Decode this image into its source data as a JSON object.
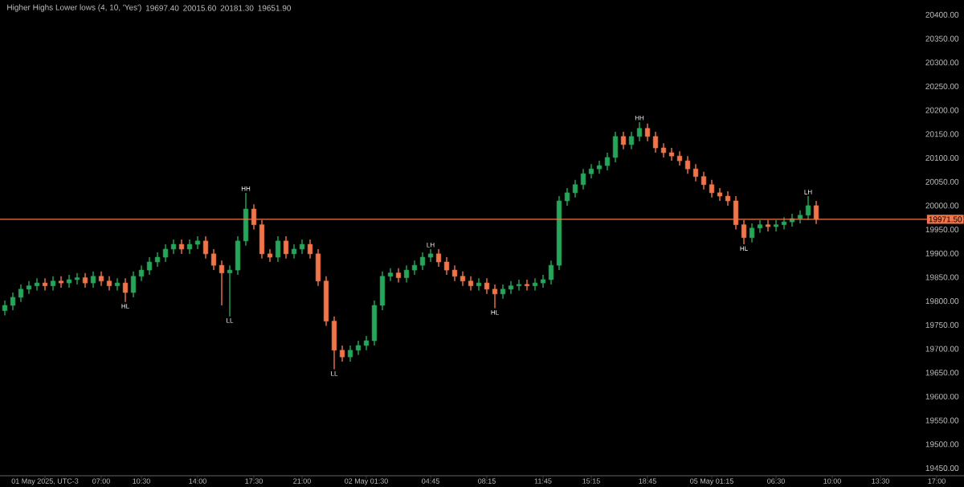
{
  "chart_data": {
    "type": "candlestick",
    "title": "Higher Highs Lower lows (4, 10, 'Yes')",
    "annotations": [
      "19697.40",
      "20015.60",
      "20181.30",
      "19651.90"
    ],
    "categories": [
      null,
      null,
      null,
      null,
      null,
      "01 May 2025, UTC-3",
      null,
      null,
      null,
      null,
      null,
      null,
      "07:00",
      null,
      null,
      null,
      null,
      "10:30",
      null,
      null,
      null,
      null,
      null,
      null,
      "14:00",
      null,
      null,
      null,
      null,
      null,
      null,
      "17:30",
      null,
      null,
      null,
      null,
      null,
      "21:00",
      null,
      null,
      null,
      null,
      null,
      null,
      null,
      "02 May 01:30",
      null,
      null,
      null,
      null,
      null,
      null,
      null,
      "04:45",
      null,
      null,
      null,
      null,
      null,
      null,
      "08:15",
      null,
      null,
      null,
      null,
      null,
      null,
      "11:45",
      null,
      null,
      null,
      null,
      null,
      "15:15",
      null,
      null,
      null,
      null,
      null,
      null,
      "18:45",
      null,
      null,
      null,
      null,
      null,
      null,
      null,
      "05 May 01:15",
      null,
      null,
      null,
      null,
      null,
      null,
      null,
      "06:30",
      null,
      null,
      null,
      null,
      null,
      null,
      "10:00",
      null,
      null,
      null,
      null,
      null,
      "13:30",
      null,
      null,
      null,
      null,
      null,
      null,
      "17:00",
      null,
      null,
      null
    ],
    "value_labels": [
      null,
      null,
      null,
      null,
      null,
      null,
      null,
      null,
      null,
      null,
      null,
      null,
      null,
      null,
      null,
      "HL",
      null,
      null,
      null,
      null,
      null,
      null,
      null,
      null,
      null,
      null,
      null,
      null,
      "LL",
      null,
      "HH",
      null,
      null,
      null,
      null,
      null,
      null,
      null,
      null,
      null,
      null,
      "LL",
      null,
      null,
      null,
      null,
      null,
      null,
      null,
      null,
      null,
      null,
      null,
      "LH",
      null,
      null,
      null,
      null,
      null,
      null,
      null,
      "HL",
      null,
      null,
      null,
      null,
      null,
      null,
      null,
      null,
      null,
      null,
      null,
      null,
      null,
      null,
      null,
      null,
      null,
      "HH",
      null,
      null,
      null,
      null,
      null,
      null,
      null,
      null,
      null,
      null,
      null,
      null,
      "HL",
      null,
      null,
      null,
      null,
      null,
      null,
      null,
      "LH",
      null,
      null,
      null,
      null,
      null,
      null,
      null,
      null,
      null,
      null,
      null,
      null,
      null,
      null,
      null,
      null,
      null,
      null,
      null
    ],
    "ohlc": [
      [
        19780,
        19801,
        19770,
        19791
      ],
      [
        19791,
        19818,
        19781,
        19808
      ],
      [
        19808,
        19835,
        19798,
        19825
      ],
      [
        19825,
        19842,
        19815,
        19832
      ],
      [
        19832,
        19848,
        19822,
        19838
      ],
      [
        19838,
        19848,
        19822,
        19832
      ],
      [
        19832,
        19852,
        19822,
        19842
      ],
      [
        19842,
        19852,
        19828,
        19838
      ],
      [
        19838,
        19855,
        19828,
        19845
      ],
      [
        19845,
        19859,
        19835,
        19849
      ],
      [
        19849,
        19859,
        19828,
        19838
      ],
      [
        19838,
        19862,
        19828,
        19852
      ],
      [
        19852,
        19862,
        19832,
        19842
      ],
      [
        19842,
        19852,
        19822,
        19832
      ],
      [
        19832,
        19848,
        19822,
        19838
      ],
      [
        19838,
        19848,
        19798,
        19818
      ],
      [
        19818,
        19862,
        19808,
        19852
      ],
      [
        19852,
        19875,
        19842,
        19865
      ],
      [
        19865,
        19892,
        19855,
        19882
      ],
      [
        19882,
        19902,
        19872,
        19892
      ],
      [
        19892,
        19919,
        19882,
        19909
      ],
      [
        19909,
        19929,
        19899,
        19919
      ],
      [
        19919,
        19929,
        19899,
        19909
      ],
      [
        19909,
        19929,
        19899,
        19919
      ],
      [
        19919,
        19936,
        19909,
        19926
      ],
      [
        19926,
        19936,
        19889,
        19899
      ],
      [
        19899,
        19909,
        19865,
        19875
      ],
      [
        19875,
        19885,
        19791,
        19859
      ],
      [
        19859,
        19875,
        19768,
        19865
      ],
      [
        19865,
        19936,
        19855,
        19926
      ],
      [
        19926,
        20027,
        19916,
        19993
      ],
      [
        19993,
        20003,
        19950,
        19960
      ],
      [
        19960,
        19970,
        19889,
        19899
      ],
      [
        19899,
        19909,
        19882,
        19892
      ],
      [
        19892,
        19936,
        19882,
        19926
      ],
      [
        19926,
        19936,
        19889,
        19899
      ],
      [
        19899,
        19919,
        19889,
        19909
      ],
      [
        19909,
        19929,
        19899,
        19919
      ],
      [
        19919,
        19929,
        19889,
        19899
      ],
      [
        19899,
        19909,
        19832,
        19842
      ],
      [
        19842,
        19852,
        19748,
        19758
      ],
      [
        19758,
        19768,
        19657,
        19697
      ],
      [
        19697,
        19707,
        19673,
        19683
      ],
      [
        19683,
        19707,
        19673,
        19697
      ],
      [
        19697,
        19717,
        19687,
        19707
      ],
      [
        19707,
        19727,
        19697,
        19717
      ],
      [
        19717,
        19801,
        19707,
        19791
      ],
      [
        19791,
        19862,
        19781,
        19852
      ],
      [
        19852,
        19869,
        19842,
        19859
      ],
      [
        19859,
        19869,
        19839,
        19849
      ],
      [
        19849,
        19875,
        19839,
        19865
      ],
      [
        19865,
        19885,
        19855,
        19875
      ],
      [
        19875,
        19902,
        19865,
        19892
      ],
      [
        19892,
        19909,
        19882,
        19899
      ],
      [
        19899,
        19909,
        19872,
        19882
      ],
      [
        19882,
        19892,
        19855,
        19865
      ],
      [
        19865,
        19875,
        19842,
        19852
      ],
      [
        19852,
        19862,
        19832,
        19842
      ],
      [
        19842,
        19852,
        19822,
        19832
      ],
      [
        19832,
        19848,
        19822,
        19838
      ],
      [
        19838,
        19848,
        19815,
        19825
      ],
      [
        19825,
        19835,
        19785,
        19815
      ],
      [
        19815,
        19835,
        19805,
        19825
      ],
      [
        19825,
        19842,
        19815,
        19832
      ],
      [
        19832,
        19845,
        19822,
        19835
      ],
      [
        19835,
        19845,
        19822,
        19832
      ],
      [
        19832,
        19848,
        19822,
        19838
      ],
      [
        19838,
        19855,
        19828,
        19845
      ],
      [
        19845,
        19885,
        19835,
        19875
      ],
      [
        19875,
        20020,
        19865,
        20010
      ],
      [
        20010,
        20037,
        20000,
        20027
      ],
      [
        20027,
        20054,
        20017,
        20044
      ],
      [
        20044,
        20077,
        20034,
        20067
      ],
      [
        20067,
        20087,
        20057,
        20077
      ],
      [
        20077,
        20094,
        20067,
        20084
      ],
      [
        20084,
        20111,
        20074,
        20101
      ],
      [
        20101,
        20155,
        20091,
        20145
      ],
      [
        20145,
        20155,
        20118,
        20128
      ],
      [
        20128,
        20155,
        20118,
        20145
      ],
      [
        20145,
        20175,
        20135,
        20162
      ],
      [
        20162,
        20172,
        20135,
        20145
      ],
      [
        20145,
        20155,
        20111,
        20121
      ],
      [
        20121,
        20131,
        20101,
        20111
      ],
      [
        20111,
        20121,
        20094,
        20104
      ],
      [
        20104,
        20114,
        20084,
        20094
      ],
      [
        20094,
        20104,
        20067,
        20077
      ],
      [
        20077,
        20087,
        20051,
        20061
      ],
      [
        20061,
        20071,
        20034,
        20044
      ],
      [
        20044,
        20054,
        20017,
        20027
      ],
      [
        20027,
        20037,
        20010,
        20020
      ],
      [
        20020,
        20030,
        20000,
        20010
      ],
      [
        20010,
        20020,
        19950,
        19960
      ],
      [
        19960,
        19970,
        19919,
        19933
      ],
      [
        19933,
        19963,
        19923,
        19953
      ],
      [
        19953,
        19970,
        19943,
        19960
      ],
      [
        19960,
        19970,
        19946,
        19956
      ],
      [
        19956,
        19970,
        19946,
        19960
      ],
      [
        19960,
        19976,
        19950,
        19966
      ],
      [
        19966,
        19983,
        19956,
        19973
      ],
      [
        19973,
        19990,
        19963,
        19980
      ],
      [
        19980,
        20020,
        19970,
        20000
      ],
      [
        20000,
        20010,
        19961.5,
        19971.5
      ],
      null,
      null,
      null,
      null,
      null,
      null,
      null,
      null,
      null,
      null,
      null,
      null,
      null,
      null,
      null,
      null,
      null,
      null
    ],
    "colors": [
      "#26a65b",
      "#26a65b",
      "#26a65b",
      "#26a65b",
      "#26a65b",
      "#f0764a",
      "#26a65b",
      "#f0764a",
      "#26a65b",
      "#26a65b",
      "#f0764a",
      "#26a65b",
      "#f0764a",
      "#f0764a",
      "#26a65b",
      "#f0764a",
      "#26a65b",
      "#26a65b",
      "#26a65b",
      "#26a65b",
      "#26a65b",
      "#26a65b",
      "#f0764a",
      "#26a65b",
      "#26a65b",
      "#f0764a",
      "#f0764a",
      "#f0764a",
      "#26a65b",
      "#26a65b",
      "#26a65b",
      "#f0764a",
      "#f0764a",
      "#f0764a",
      "#26a65b",
      "#f0764a",
      "#26a65b",
      "#26a65b",
      "#f0764a",
      "#f0764a",
      "#f0764a",
      "#f0764a",
      "#f0764a",
      "#26a65b",
      "#26a65b",
      "#26a65b",
      "#26a65b",
      "#26a65b",
      "#26a65b",
      "#f0764a",
      "#26a65b",
      "#26a65b",
      "#26a65b",
      "#26a65b",
      "#f0764a",
      "#f0764a",
      "#f0764a",
      "#f0764a",
      "#f0764a",
      "#26a65b",
      "#f0764a",
      "#f0764a",
      "#26a65b",
      "#26a65b",
      "#26a65b",
      "#f0764a",
      "#26a65b",
      "#26a65b",
      "#26a65b",
      "#26a65b",
      "#26a65b",
      "#26a65b",
      "#26a65b",
      "#26a65b",
      "#26a65b",
      "#26a65b",
      "#26a65b",
      "#f0764a",
      "#26a65b",
      "#26a65b",
      "#f0764a",
      "#f0764a",
      "#f0764a",
      "#f0764a",
      "#f0764a",
      "#f0764a",
      "#f0764a",
      "#f0764a",
      "#f0764a",
      "#f0764a",
      "#f0764a",
      "#f0764a",
      "#f0764a",
      "#26a65b",
      "#26a65b",
      "#f0764a",
      "#26a65b",
      "#26a65b",
      "#26a65b",
      "#26a65b",
      "#26a65b",
      "#f0764a",
      null,
      null,
      null,
      null,
      null,
      null,
      null,
      null,
      null,
      null,
      null,
      null,
      null,
      null,
      null,
      null,
      null,
      null
    ],
    "ylim": [
      19434,
      20431
    ],
    "yticks": [
      {
        "value": 19450,
        "label": "19450.00"
      },
      {
        "value": 19500,
        "label": "19500.00"
      },
      {
        "value": 19550,
        "label": "19550.00"
      },
      {
        "value": 19600,
        "label": "19600.00"
      },
      {
        "value": 19650,
        "label": "19650.00"
      },
      {
        "value": 19700,
        "label": "19700.00"
      },
      {
        "value": 19750,
        "label": "19750.00"
      },
      {
        "value": 19800,
        "label": "19800.00"
      },
      {
        "value": 19850,
        "label": "19850.00"
      },
      {
        "value": 19900,
        "label": "19900.00"
      },
      {
        "value": 19950,
        "label": "19950.00"
      },
      {
        "value": 20000,
        "label": "20000.00"
      },
      {
        "value": 20050,
        "label": "20050.00"
      },
      {
        "value": 20100,
        "label": "20100.00"
      },
      {
        "value": 20150,
        "label": "20150.00"
      },
      {
        "value": 20200,
        "label": "20200.00"
      },
      {
        "value": 20250,
        "label": "20250.00"
      },
      {
        "value": 20300,
        "label": "20300.00"
      },
      {
        "value": 20350,
        "label": "20350.00"
      },
      {
        "value": 20400,
        "label": "20400.00"
      }
    ],
    "ref_lines": [
      {
        "axis": "y",
        "value": 19971.5,
        "label": "19971.50",
        "color": "#f0764a"
      }
    ]
  }
}
